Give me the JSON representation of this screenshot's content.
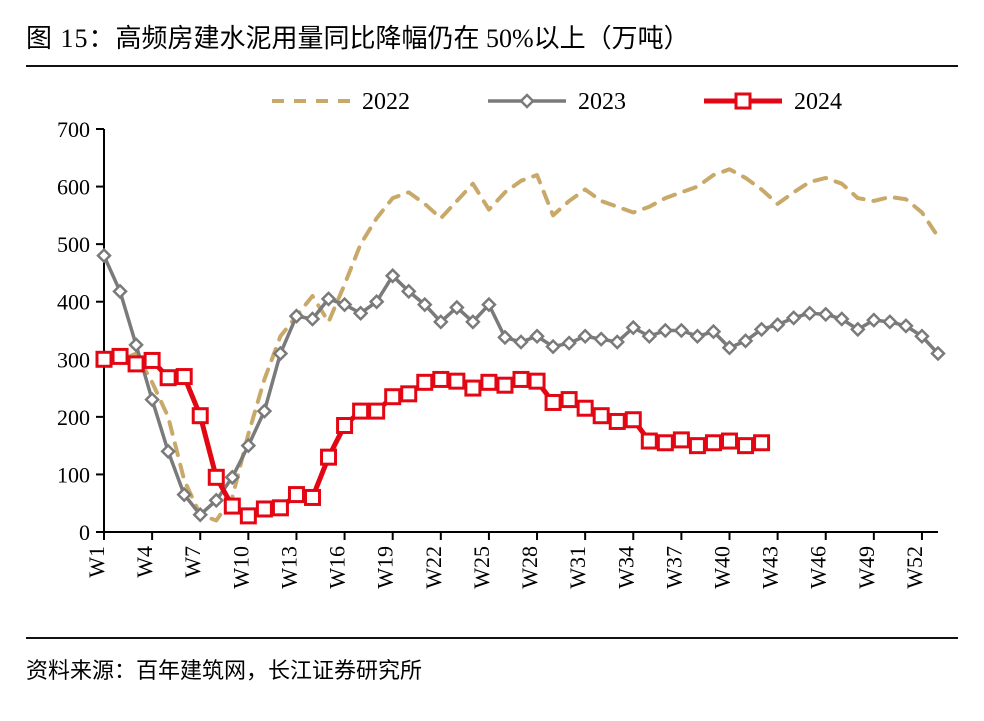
{
  "figure": {
    "label_prefix": "图 15：",
    "title": "高频房建水泥用量同比降幅仍在 50%以上（万吨）",
    "source_prefix": "资料来源：",
    "source": "百年建筑网，长江证券研究所"
  },
  "chart": {
    "type": "line",
    "background_color": "#ffffff",
    "plot_border_color": "#000000",
    "plot_border_width": 2,
    "ylim": [
      0,
      700
    ],
    "ytick_step": 100,
    "yticks": [
      0,
      100,
      200,
      300,
      400,
      500,
      600,
      700
    ],
    "xlim_weeks": [
      1,
      53
    ],
    "xtick_weeks": [
      1,
      4,
      7,
      10,
      13,
      16,
      19,
      22,
      25,
      28,
      31,
      34,
      37,
      40,
      43,
      46,
      49,
      52
    ],
    "xtick_labels": [
      "W1",
      "W4",
      "W7",
      "W10",
      "W13",
      "W16",
      "W19",
      "W22",
      "W25",
      "W28",
      "W31",
      "W34",
      "W37",
      "W40",
      "W43",
      "W46",
      "W49",
      "W52"
    ],
    "grid": false,
    "legend": {
      "items": [
        {
          "key": "s2022",
          "label": "2022"
        },
        {
          "key": "s2023",
          "label": "2023"
        },
        {
          "key": "s2024",
          "label": "2024"
        }
      ],
      "fontsize": 24,
      "position": "top-center"
    },
    "label_fontsize": 22,
    "title_fontsize": 26,
    "series": {
      "s2022": {
        "label": "2022",
        "color": "#c9a96a",
        "line_width": 4,
        "dash": "12,10",
        "marker": "none",
        "data": [
          300,
          298,
          310,
          260,
          200,
          90,
          30,
          20,
          60,
          170,
          265,
          340,
          375,
          410,
          365,
          430,
          500,
          545,
          580,
          590,
          570,
          545,
          575,
          605,
          560,
          590,
          610,
          620,
          550,
          575,
          595,
          575,
          565,
          555,
          565,
          580,
          590,
          600,
          620,
          630,
          615,
          595,
          570,
          590,
          608,
          615,
          605,
          580,
          575,
          582,
          578,
          555,
          513
        ]
      },
      "s2023": {
        "label": "2023",
        "color": "#7a7a7a",
        "line_width": 3.5,
        "dash": "none",
        "marker": "diamond",
        "marker_size": 12,
        "marker_fill": "#ffffff",
        "marker_stroke": "#7a7a7a",
        "marker_stroke_width": 2.5,
        "data": [
          480,
          418,
          325,
          230,
          140,
          65,
          30,
          55,
          95,
          150,
          210,
          310,
          375,
          370,
          405,
          395,
          380,
          400,
          445,
          418,
          395,
          365,
          390,
          365,
          395,
          338,
          330,
          340,
          322,
          328,
          340,
          335,
          330,
          355,
          340,
          350,
          350,
          340,
          348,
          320,
          332,
          352,
          360,
          372,
          380,
          378,
          370,
          352,
          368,
          365,
          358,
          340,
          310
        ]
      },
      "s2024": {
        "label": "2024",
        "color": "#e30613",
        "line_width": 5,
        "dash": "none",
        "marker": "square",
        "marker_size": 14,
        "marker_fill": "#ffffff",
        "marker_stroke": "#e30613",
        "marker_stroke_width": 3,
        "data": [
          300,
          305,
          292,
          298,
          268,
          270,
          202,
          95,
          45,
          28,
          40,
          42,
          65,
          60,
          130,
          185,
          210,
          210,
          235,
          240,
          260,
          265,
          262,
          250,
          260,
          255,
          265,
          262,
          225,
          230,
          215,
          202,
          192,
          195,
          158,
          155,
          160,
          150,
          155,
          158,
          150,
          155
        ]
      }
    }
  }
}
